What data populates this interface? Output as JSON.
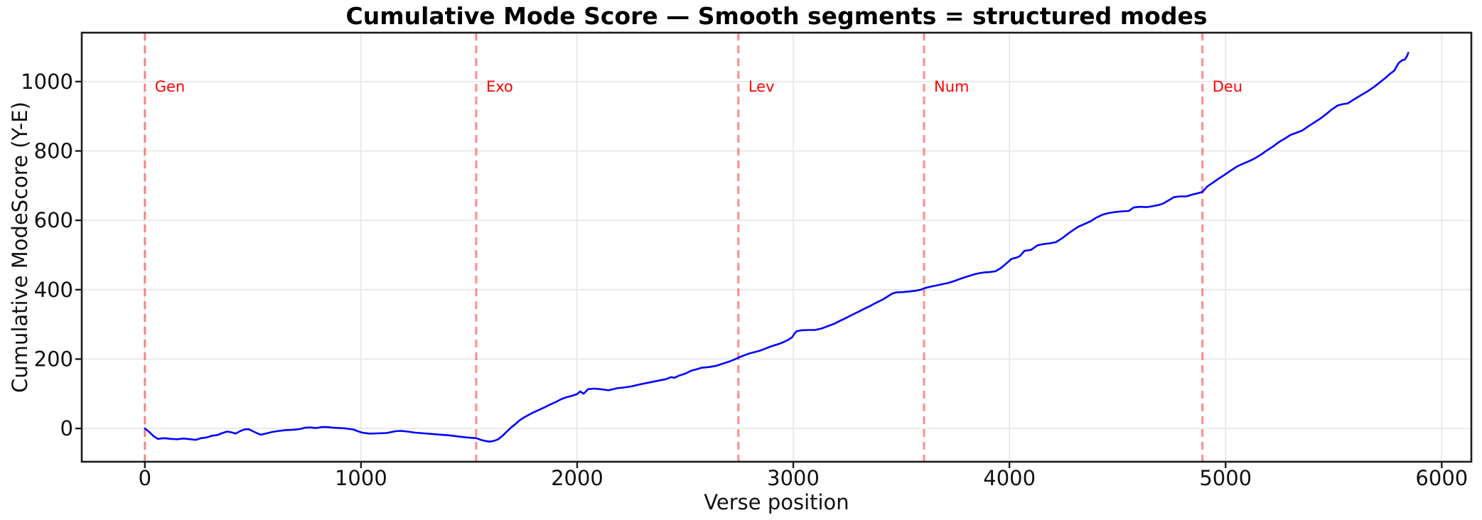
{
  "chart_data": {
    "type": "line",
    "title": "Cumulative Mode Score — Smooth segments = structured modes",
    "xlabel": "Verse position",
    "ylabel": "Cumulative ModeScore (Y-E)",
    "xlim": [
      -292,
      6137
    ],
    "ylim": [
      -96,
      1141
    ],
    "xticks": [
      0,
      1000,
      2000,
      3000,
      4000,
      5000,
      6000
    ],
    "yticks": [
      0,
      200,
      400,
      600,
      800,
      1000
    ],
    "grid": true,
    "legend_position": "none",
    "colors": {
      "line": "#0000ff",
      "boundary_line": "rgba(255,0,0,0.45)",
      "boundary_label": "#ff0000",
      "grid": "#e9e9e9",
      "axis": "#1c1c1c",
      "text": "#111111"
    },
    "book_boundaries": [
      {
        "label": "Gen",
        "verse": 0
      },
      {
        "label": "Exo",
        "verse": 1533
      },
      {
        "label": "Lev",
        "verse": 2746
      },
      {
        "label": "Num",
        "verse": 3605
      },
      {
        "label": "Deu",
        "verse": 4893
      }
    ],
    "series": [
      {
        "name": "Cumulative ModeScore",
        "points": [
          [
            0,
            0
          ],
          [
            20,
            -10
          ],
          [
            40,
            -22
          ],
          [
            60,
            -30
          ],
          [
            90,
            -28
          ],
          [
            120,
            -30
          ],
          [
            150,
            -31
          ],
          [
            180,
            -29
          ],
          [
            210,
            -31
          ],
          [
            235,
            -33
          ],
          [
            260,
            -28
          ],
          [
            286,
            -26
          ],
          [
            310,
            -21
          ],
          [
            335,
            -19
          ],
          [
            355,
            -14
          ],
          [
            380,
            -9
          ],
          [
            400,
            -11
          ],
          [
            420,
            -15
          ],
          [
            440,
            -8
          ],
          [
            460,
            -3
          ],
          [
            480,
            -2
          ],
          [
            500,
            -8
          ],
          [
            520,
            -14
          ],
          [
            537,
            -18
          ],
          [
            560,
            -15
          ],
          [
            590,
            -10
          ],
          [
            623,
            -7
          ],
          [
            650,
            -5
          ],
          [
            680,
            -4
          ],
          [
            700,
            -3
          ],
          [
            722,
            -1
          ],
          [
            740,
            2
          ],
          [
            765,
            3
          ],
          [
            790,
            1
          ],
          [
            820,
            4
          ],
          [
            845,
            4
          ],
          [
            870,
            2
          ],
          [
            900,
            1
          ],
          [
            930,
            0
          ],
          [
            965,
            -3
          ],
          [
            985,
            -8
          ],
          [
            1005,
            -12
          ],
          [
            1040,
            -15
          ],
          [
            1080,
            -14
          ],
          [
            1120,
            -13
          ],
          [
            1160,
            -8
          ],
          [
            1185,
            -7
          ],
          [
            1215,
            -9
          ],
          [
            1250,
            -12
          ],
          [
            1290,
            -14
          ],
          [
            1330,
            -16
          ],
          [
            1370,
            -18
          ],
          [
            1410,
            -20
          ],
          [
            1450,
            -23
          ],
          [
            1490,
            -26
          ],
          [
            1533,
            -28
          ],
          [
            1555,
            -33
          ],
          [
            1575,
            -36
          ],
          [
            1595,
            -38
          ],
          [
            1615,
            -36
          ],
          [
            1635,
            -31
          ],
          [
            1655,
            -21
          ],
          [
            1675,
            -9
          ],
          [
            1695,
            3
          ],
          [
            1715,
            13
          ],
          [
            1735,
            24
          ],
          [
            1755,
            32
          ],
          [
            1775,
            39
          ],
          [
            1800,
            47
          ],
          [
            1825,
            54
          ],
          [
            1850,
            61
          ],
          [
            1875,
            69
          ],
          [
            1900,
            76
          ],
          [
            1925,
            84
          ],
          [
            1950,
            90
          ],
          [
            1975,
            94
          ],
          [
            2000,
            99
          ],
          [
            2014,
            107
          ],
          [
            2030,
            100
          ],
          [
            2050,
            113
          ],
          [
            2080,
            115
          ],
          [
            2110,
            113
          ],
          [
            2145,
            110
          ],
          [
            2160,
            112
          ],
          [
            2185,
            116
          ],
          [
            2215,
            118
          ],
          [
            2250,
            121
          ],
          [
            2290,
            127
          ],
          [
            2330,
            132
          ],
          [
            2370,
            137
          ],
          [
            2410,
            142
          ],
          [
            2435,
            148
          ],
          [
            2450,
            146
          ],
          [
            2470,
            152
          ],
          [
            2500,
            158
          ],
          [
            2530,
            167
          ],
          [
            2550,
            170
          ],
          [
            2575,
            175
          ],
          [
            2610,
            177
          ],
          [
            2640,
            180
          ],
          [
            2670,
            186
          ],
          [
            2700,
            192
          ],
          [
            2725,
            198
          ],
          [
            2746,
            204
          ],
          [
            2770,
            210
          ],
          [
            2800,
            217
          ],
          [
            2820,
            220
          ],
          [
            2845,
            224
          ],
          [
            2870,
            230
          ],
          [
            2895,
            236
          ],
          [
            2915,
            240
          ],
          [
            2935,
            244
          ],
          [
            2955,
            249
          ],
          [
            2975,
            255
          ],
          [
            2995,
            263
          ],
          [
            3005,
            273
          ],
          [
            3015,
            280
          ],
          [
            3040,
            283
          ],
          [
            3070,
            284
          ],
          [
            3100,
            284
          ],
          [
            3130,
            288
          ],
          [
            3160,
            295
          ],
          [
            3190,
            302
          ],
          [
            3215,
            310
          ],
          [
            3245,
            319
          ],
          [
            3270,
            327
          ],
          [
            3300,
            336
          ],
          [
            3325,
            344
          ],
          [
            3355,
            353
          ],
          [
            3385,
            363
          ],
          [
            3415,
            372
          ],
          [
            3440,
            382
          ],
          [
            3458,
            389
          ],
          [
            3475,
            392
          ],
          [
            3505,
            393
          ],
          [
            3535,
            395
          ],
          [
            3565,
            397
          ],
          [
            3590,
            400
          ],
          [
            3605,
            404
          ],
          [
            3630,
            408
          ],
          [
            3660,
            412
          ],
          [
            3690,
            416
          ],
          [
            3715,
            419
          ],
          [
            3745,
            425
          ],
          [
            3775,
            432
          ],
          [
            3805,
            438
          ],
          [
            3825,
            442
          ],
          [
            3855,
            447
          ],
          [
            3885,
            450
          ],
          [
            3910,
            451
          ],
          [
            3935,
            453
          ],
          [
            3960,
            462
          ],
          [
            3990,
            478
          ],
          [
            4010,
            489
          ],
          [
            4030,
            492
          ],
          [
            4048,
            497
          ],
          [
            4070,
            512
          ],
          [
            4100,
            515
          ],
          [
            4130,
            528
          ],
          [
            4160,
            532
          ],
          [
            4190,
            534
          ],
          [
            4215,
            537
          ],
          [
            4245,
            549
          ],
          [
            4270,
            561
          ],
          [
            4295,
            572
          ],
          [
            4320,
            582
          ],
          [
            4350,
            590
          ],
          [
            4375,
            597
          ],
          [
            4400,
            607
          ],
          [
            4430,
            616
          ],
          [
            4460,
            621
          ],
          [
            4490,
            624
          ],
          [
            4520,
            626
          ],
          [
            4552,
            627
          ],
          [
            4575,
            637
          ],
          [
            4605,
            639
          ],
          [
            4635,
            638
          ],
          [
            4665,
            641
          ],
          [
            4695,
            645
          ],
          [
            4710,
            648
          ],
          [
            4735,
            657
          ],
          [
            4762,
            667
          ],
          [
            4790,
            669
          ],
          [
            4818,
            669
          ],
          [
            4845,
            674
          ],
          [
            4870,
            678
          ],
          [
            4893,
            682
          ],
          [
            4916,
            698
          ],
          [
            4940,
            708
          ],
          [
            4970,
            721
          ],
          [
            5000,
            733
          ],
          [
            5025,
            744
          ],
          [
            5055,
            756
          ],
          [
            5080,
            763
          ],
          [
            5110,
            771
          ],
          [
            5136,
            779
          ],
          [
            5165,
            790
          ],
          [
            5190,
            801
          ],
          [
            5220,
            813
          ],
          [
            5245,
            825
          ],
          [
            5275,
            836
          ],
          [
            5300,
            846
          ],
          [
            5330,
            853
          ],
          [
            5355,
            859
          ],
          [
            5380,
            870
          ],
          [
            5410,
            882
          ],
          [
            5440,
            894
          ],
          [
            5465,
            906
          ],
          [
            5490,
            919
          ],
          [
            5518,
            931
          ],
          [
            5542,
            935
          ],
          [
            5565,
            937
          ],
          [
            5595,
            949
          ],
          [
            5630,
            962
          ],
          [
            5660,
            973
          ],
          [
            5685,
            984
          ],
          [
            5712,
            997
          ],
          [
            5740,
            1011
          ],
          [
            5762,
            1023
          ],
          [
            5780,
            1031
          ],
          [
            5800,
            1053
          ],
          [
            5815,
            1061
          ],
          [
            5830,
            1064
          ],
          [
            5840,
            1074
          ],
          [
            5845,
            1083
          ]
        ]
      }
    ]
  }
}
